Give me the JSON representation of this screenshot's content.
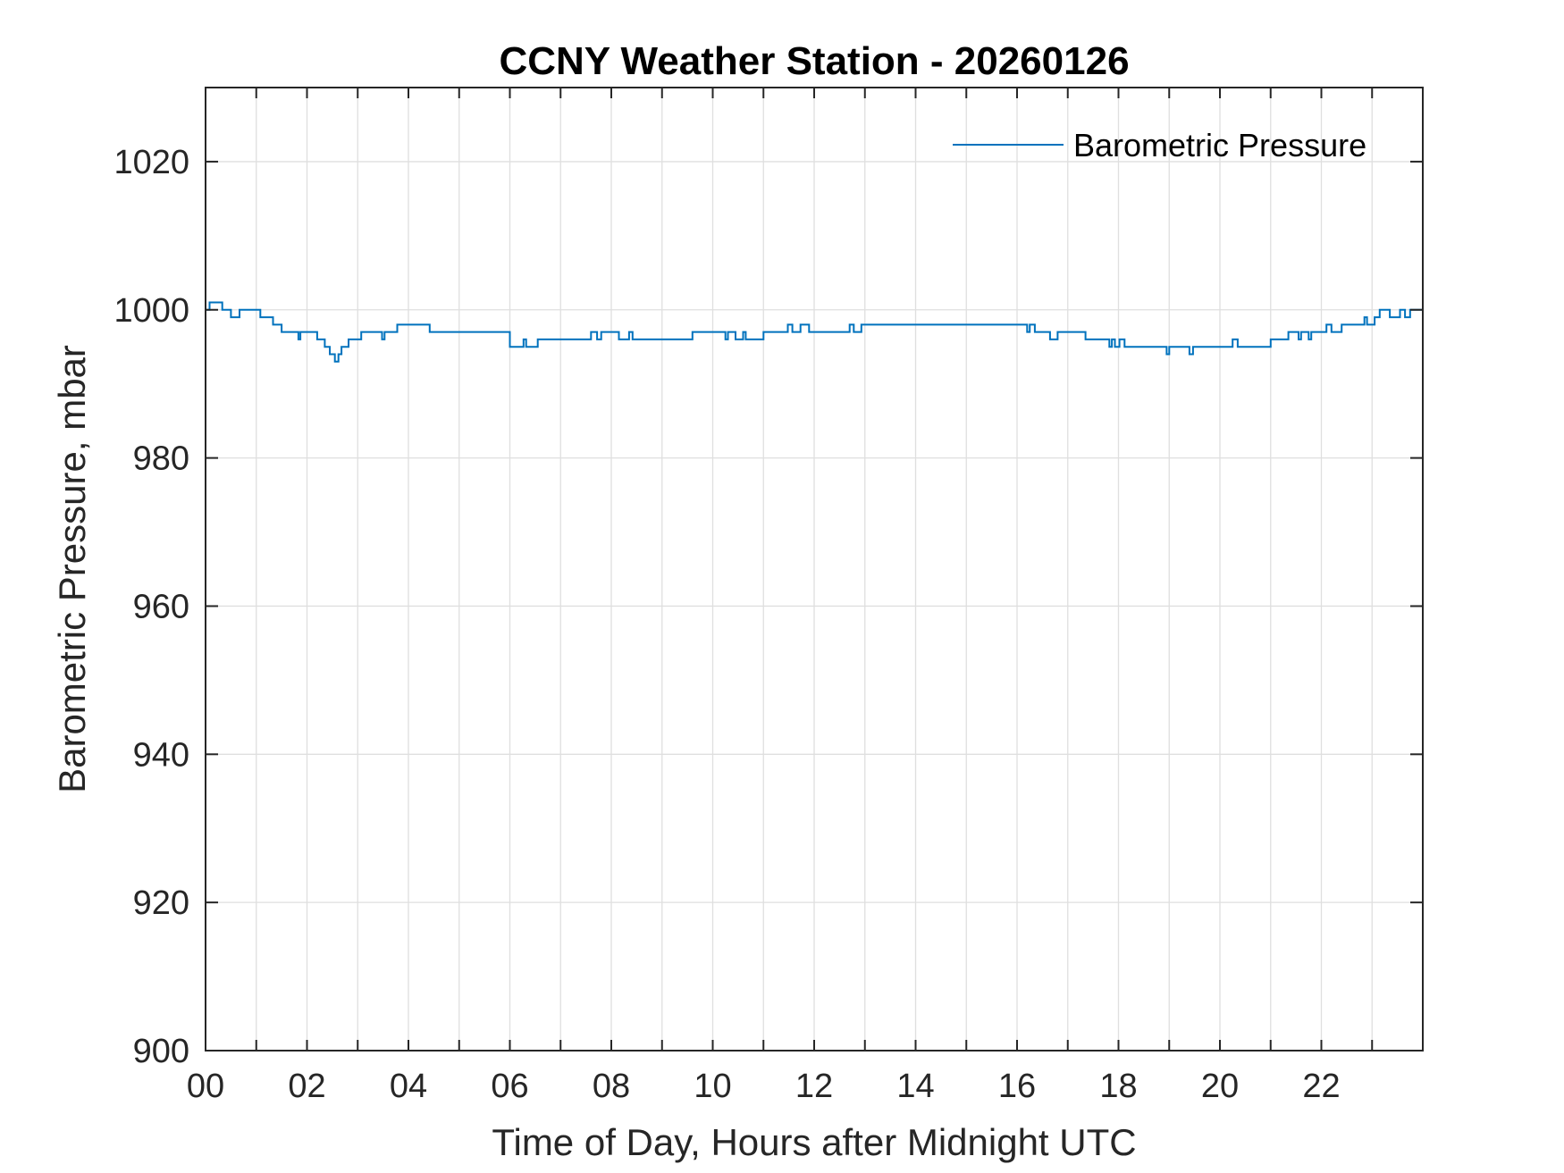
{
  "chart_data": {
    "type": "line",
    "title": "CCNY Weather Station - 20260126",
    "xlabel": "Time of Day, Hours after Midnight UTC",
    "ylabel": "Barometric Pressure, mbar",
    "xlim": [
      0,
      24
    ],
    "ylim": [
      900,
      1030
    ],
    "x_ticks": [
      0,
      2,
      4,
      6,
      8,
      10,
      12,
      14,
      16,
      18,
      20,
      22
    ],
    "x_tick_labels": [
      "00",
      "02",
      "04",
      "06",
      "08",
      "10",
      "12",
      "14",
      "16",
      "18",
      "20",
      "22"
    ],
    "x_grid_step": 1,
    "y_ticks": [
      900,
      920,
      940,
      960,
      980,
      1000,
      1020
    ],
    "y_tick_labels": [
      "900",
      "920",
      "940",
      "960",
      "980",
      "1000",
      "1020"
    ],
    "grid": true,
    "legend_position": "top-right",
    "colors": {
      "series": "#0072BD",
      "axes": "#262626",
      "grid": "#dfdfdf"
    },
    "series": [
      {
        "name": "Barometric Pressure",
        "step": true,
        "x": [
          0.0,
          0.08,
          0.33,
          0.5,
          0.67,
          1.0,
          1.08,
          1.33,
          1.5,
          1.83,
          1.87,
          1.95,
          2.2,
          2.35,
          2.45,
          2.55,
          2.62,
          2.68,
          2.82,
          3.07,
          3.48,
          3.53,
          3.63,
          3.78,
          4.1,
          4.42,
          5.25,
          6.0,
          6.27,
          6.32,
          6.45,
          6.55,
          7.6,
          7.72,
          7.8,
          7.97,
          8.15,
          8.35,
          8.42,
          8.55,
          9.6,
          10.25,
          10.3,
          10.45,
          10.6,
          10.65,
          10.8,
          11.0,
          11.48,
          11.57,
          11.73,
          11.9,
          12.7,
          12.78,
          12.93,
          13.3,
          16.2,
          16.25,
          16.35,
          16.5,
          16.65,
          16.8,
          16.85,
          17.35,
          17.82,
          17.87,
          17.93,
          18.02,
          18.12,
          18.17,
          18.95,
          19.0,
          19.4,
          19.47,
          19.9,
          20.25,
          20.35,
          20.45,
          21.0,
          21.35,
          21.55,
          21.6,
          21.75,
          21.8,
          21.95,
          22.1,
          22.2,
          22.4,
          22.6,
          22.85,
          22.9,
          23.05,
          23.15,
          23.35,
          23.55,
          23.65,
          23.75,
          24.0
        ],
        "y": [
          1000,
          1001,
          1000,
          999,
          1000,
          1000,
          999,
          998,
          997,
          996,
          997,
          997,
          996,
          995,
          994,
          993,
          994,
          995,
          996,
          997,
          996,
          997,
          997,
          998,
          998,
          997,
          997,
          995,
          996,
          995,
          995,
          996,
          997,
          996,
          997,
          997,
          996,
          997,
          996,
          996,
          997,
          996,
          997,
          996,
          997,
          996,
          996,
          997,
          998,
          997,
          998,
          997,
          998,
          997,
          998,
          998,
          997,
          998,
          997,
          997,
          996,
          997,
          997,
          996,
          995,
          996,
          995,
          996,
          995,
          995,
          994,
          995,
          994,
          995,
          995,
          996,
          995,
          995,
          996,
          997,
          996,
          997,
          996,
          997,
          997,
          998,
          997,
          998,
          998,
          999,
          998,
          999,
          1000,
          999,
          1000,
          999,
          1000,
          1000
        ]
      }
    ]
  }
}
